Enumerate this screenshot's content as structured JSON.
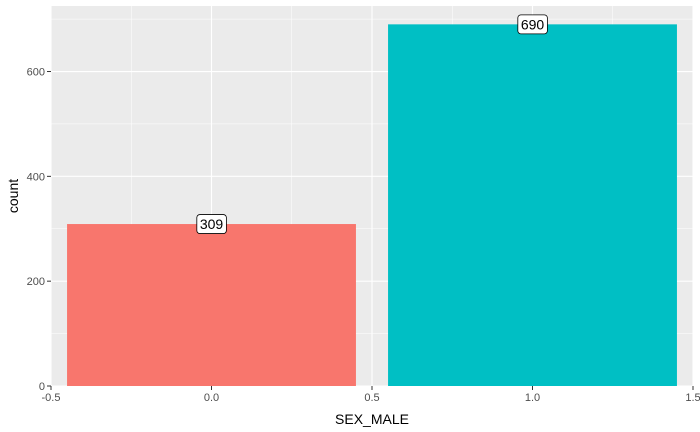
{
  "chart_data": {
    "type": "bar",
    "xlabel": "SEX_MALE",
    "ylabel": "count",
    "bars": [
      {
        "x": 0,
        "value": 309,
        "label": "309",
        "color": "#F8766D"
      },
      {
        "x": 1,
        "value": 690,
        "label": "690",
        "color": "#00BFC4"
      }
    ],
    "bar_width": 0.9,
    "xlim": [
      -0.5,
      1.5
    ],
    "ylim": [
      0,
      725
    ],
    "x_ticks": [
      {
        "value": -0.5,
        "label": "-0.5"
      },
      {
        "value": 0.0,
        "label": "0.0"
      },
      {
        "value": 0.5,
        "label": "0.5"
      },
      {
        "value": 1.0,
        "label": "1.0"
      },
      {
        "value": 1.5,
        "label": "1.5"
      }
    ],
    "y_ticks": [
      {
        "value": 0,
        "label": "0"
      },
      {
        "value": 200,
        "label": "200"
      },
      {
        "value": 400,
        "label": "400"
      },
      {
        "value": 600,
        "label": "600"
      }
    ],
    "grid": true,
    "legend": "none",
    "panel_color": "#EBEBEB",
    "grid_color": "#FFFFFF"
  }
}
